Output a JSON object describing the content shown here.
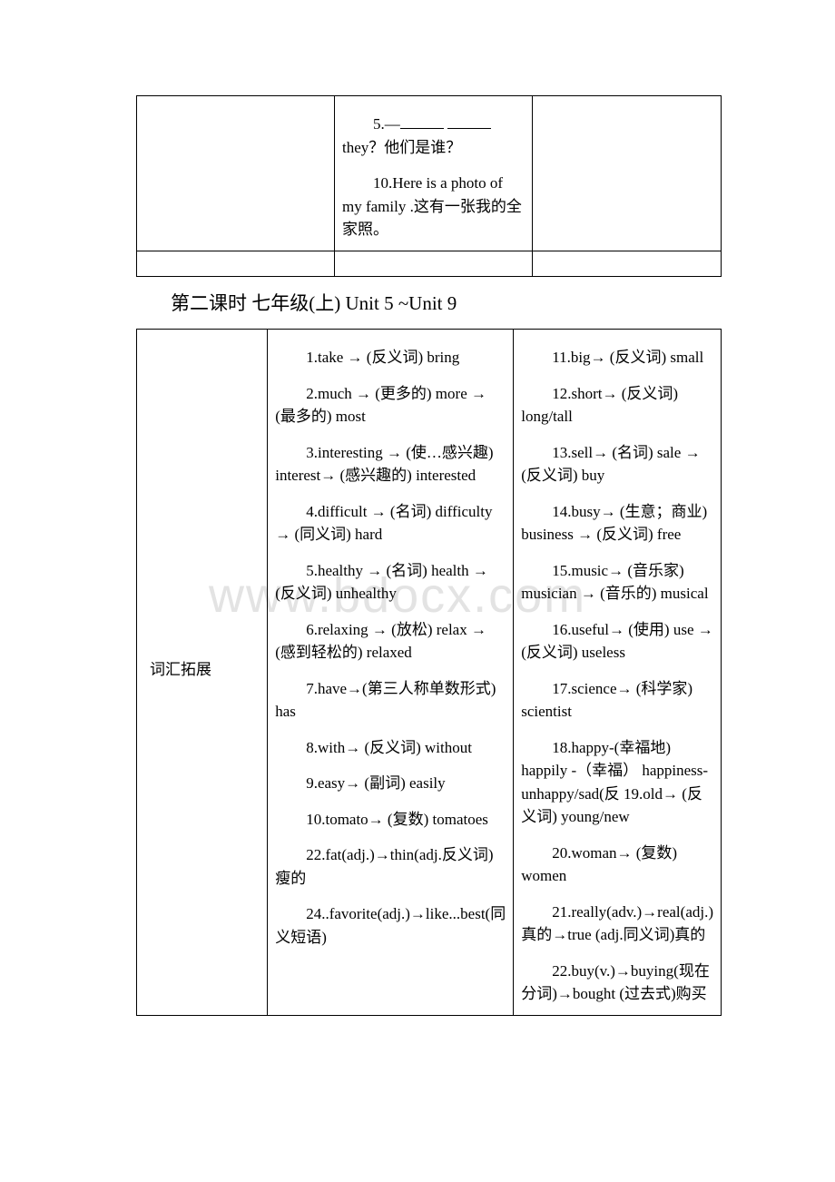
{
  "table1": {
    "row1": {
      "col2_p1": "5.—_____ _____ they？他们是谁？",
      "col2_p2": "10.Here is a photo of my family .这有一张我的全家照。"
    }
  },
  "heading": "第二课时 七年级(上) Unit 5 ~Unit 9",
  "table2": {
    "label": "词汇拓展",
    "col2": {
      "p1": "1.take → (反义词) bring",
      "p2": "2.much → (更多的) more → (最多的) most",
      "p3": "3.interesting → (使…感兴趣) interest→ (感兴趣的) interested",
      "p4": "4.difficult → (名词) difficulty → (同义词) hard",
      "p5": "5.healthy → (名词) health → (反义词) unhealthy",
      "p6": "6.relaxing → (放松) relax → (感到轻松的) relaxed",
      "p7": "7.have→(第三人称单数形式) has",
      "p8": "8.with→ (反义词) without",
      "p9": "9.easy→ (副词) easily",
      "p10": "10.tomato→ (复数) tomatoes",
      "p11": "22.fat(adj.)→thin(adj.反义词) 瘦的",
      "p12": "24..favorite(adj.)→like...best(同义短语)"
    },
    "col3": {
      "p1": "11.big→ (反义词) small",
      "p2": "12.short→ (反义词) long/tall",
      "p3": "13.sell→ (名词) sale → (反义词) buy",
      "p4": "14.busy→ (生意；商业) business → (反义词) free",
      "p5": "15.music→ (音乐家) musician → (音乐的) musical",
      "p6": "16.useful→ (使用) use → (反义词) useless",
      "p7": "17.science→ (科学家) scientist",
      "p8": "18.happy-(幸福地) happily -（幸福） happiness-unhappy/sad(反 19.old→ (反义词) young/new",
      "p9": "20.woman→ (复数) women",
      "p10": "21.really(adv.)→real(adj.)真的→true (adj.同义词)真的",
      "p11": "22.buy(v.)→buying(现在分词)→bought (过去式)购买"
    }
  },
  "watermark": "www.bdocx.com",
  "colors": {
    "text": "#000000",
    "background": "#ffffff",
    "border": "#000000",
    "watermark": "#e3e3e3"
  }
}
